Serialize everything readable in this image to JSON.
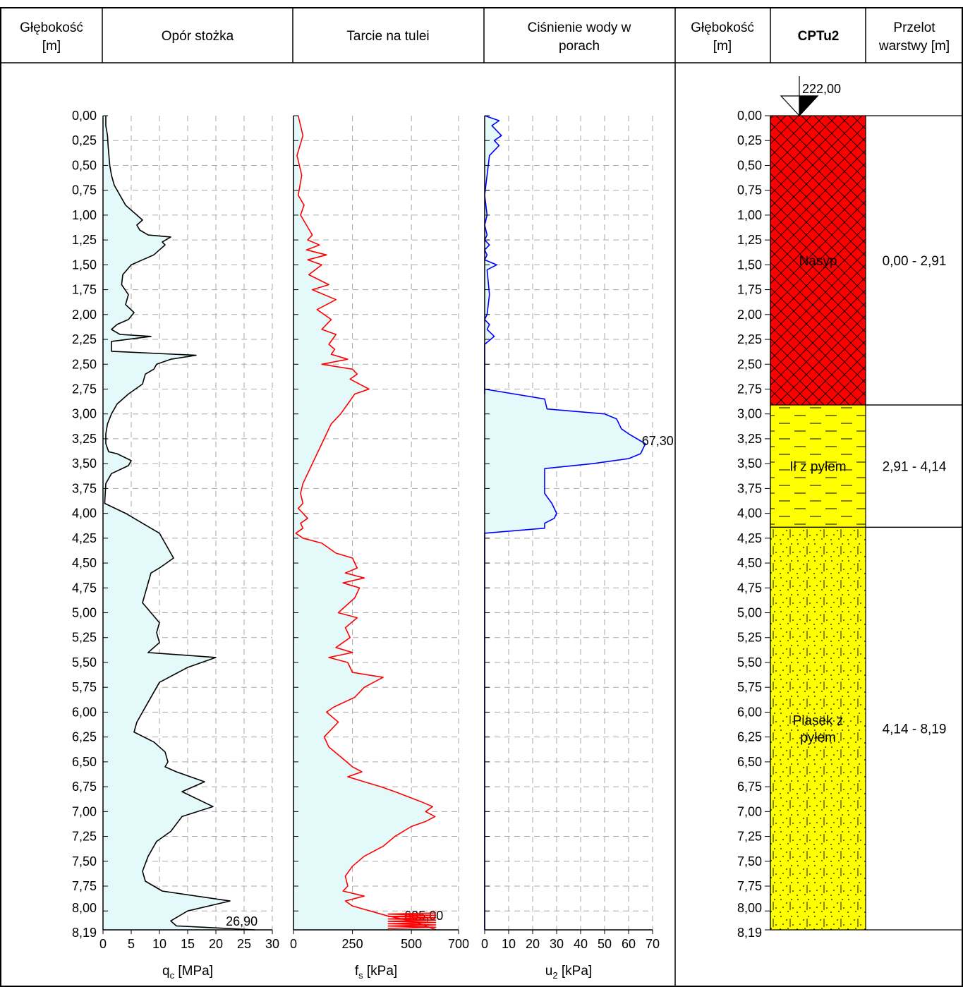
{
  "header": {
    "depth_left": [
      "Głębokość",
      "[m]"
    ],
    "cone": "Opór stożka",
    "sleeve": "Tarcie na tulei",
    "pore": [
      "Ciśnienie wody w",
      "porach"
    ],
    "depth_right": [
      "Głębokość",
      "[m]"
    ],
    "profile": "CPTu2",
    "layer_range": [
      "Przelot",
      "warstwy [m]"
    ]
  },
  "depth_ticks": [
    "0,00",
    "0,25",
    "0,50",
    "0,75",
    "1,00",
    "1,25",
    "1,50",
    "1,75",
    "2,00",
    "2,25",
    "2,50",
    "2,75",
    "3,00",
    "3,25",
    "3,50",
    "3,75",
    "4,00",
    "4,25",
    "4,50",
    "4,75",
    "5,00",
    "5,25",
    "5,50",
    "5,75",
    "6,00",
    "6,25",
    "6,50",
    "6,75",
    "7,00",
    "7,25",
    "7,50",
    "7,75",
    "8,00",
    "8,19"
  ],
  "elevation_label": "222,00",
  "colors": {
    "qc": "#000000",
    "fs": "#ff0000",
    "u2": "#0000ff",
    "fill": "#e4fafa",
    "grid": "#aaaaaa",
    "fill_layer": "#ffff00",
    "fill_red": "#ff0000"
  },
  "chart_data": [
    {
      "type": "line",
      "name": "qc",
      "xlabel_main": "q",
      "xlabel_sub": "c",
      "xlabel_unit": " [MPa]",
      "xlim": [
        0,
        30
      ],
      "ylim": [
        0,
        8.19
      ],
      "xticks": [
        0,
        5,
        10,
        15,
        20,
        25,
        30
      ],
      "xtick_labels": [
        "0",
        "5",
        "10",
        "15",
        "20",
        "25",
        "30"
      ],
      "max_label": "26,90",
      "x": [
        0.5,
        0.5,
        0.8,
        0.9,
        1.2,
        1.5,
        2.0,
        3.0,
        4.0,
        6.0,
        7.0,
        6.0,
        6.5,
        8.0,
        12.0,
        10.5,
        11.0,
        10.0,
        9.0,
        7.0,
        5.0,
        3.5,
        3.3,
        4.5,
        4.0,
        5.5,
        4.5,
        2.5,
        1.5,
        3.0,
        8.5,
        1.5,
        1.5,
        16.5,
        12.0,
        9.5,
        9.0,
        7.5,
        7.0,
        4.5,
        2.5,
        1.5,
        0.8,
        0.5,
        0.5,
        1.0,
        2.5,
        5.0,
        4.5,
        1.5,
        0.5,
        0.3,
        4.0,
        10.0,
        11.0,
        12.5,
        10.0,
        8.5,
        8.0,
        7.5,
        7.0,
        8.5,
        10.0,
        9.5,
        10.0,
        8.0,
        20.0,
        15.0,
        10.0,
        9.0,
        8.0,
        7.0,
        6.0,
        5.5,
        9.0,
        11.0,
        11.5,
        11.0,
        13.0,
        18.0,
        14.0,
        19.5,
        14.0,
        12.0,
        9.5,
        8.0,
        7.0,
        7.5,
        9.0,
        10.5,
        22.5,
        15.0,
        12.0,
        13.0,
        26.9
      ],
      "y": [
        0.0,
        0.1,
        0.2,
        0.3,
        0.5,
        0.6,
        0.7,
        0.8,
        0.9,
        1.0,
        1.05,
        1.1,
        1.15,
        1.2,
        1.22,
        1.27,
        1.3,
        1.35,
        1.4,
        1.45,
        1.5,
        1.6,
        1.7,
        1.8,
        1.9,
        1.98,
        2.05,
        2.1,
        2.15,
        2.2,
        2.22,
        2.27,
        2.37,
        2.41,
        2.45,
        2.5,
        2.55,
        2.6,
        2.7,
        2.8,
        2.9,
        3.0,
        3.1,
        3.2,
        3.3,
        3.38,
        3.4,
        3.47,
        3.52,
        3.6,
        3.7,
        3.9,
        4.0,
        4.2,
        4.3,
        4.45,
        4.55,
        4.6,
        4.7,
        4.8,
        4.9,
        5.0,
        5.1,
        5.2,
        5.3,
        5.4,
        5.45,
        5.55,
        5.7,
        5.8,
        5.9,
        6.0,
        6.1,
        6.2,
        6.3,
        6.4,
        6.5,
        6.55,
        6.6,
        6.7,
        6.8,
        6.95,
        7.05,
        7.2,
        7.3,
        7.45,
        7.6,
        7.7,
        7.75,
        7.8,
        7.9,
        8.0,
        8.1,
        8.15,
        8.19
      ]
    },
    {
      "type": "line",
      "name": "fs",
      "xlabel_main": "f",
      "xlabel_sub": "s",
      "xlabel_unit": " [kPa]",
      "xlim": [
        0,
        700
      ],
      "ylim": [
        0,
        8.19
      ],
      "xticks": [
        0,
        250,
        500,
        700
      ],
      "xtick_labels": [
        "0",
        "250",
        "500",
        "700"
      ],
      "max_label": "605,00",
      "x": [
        20,
        40,
        15,
        35,
        20,
        45,
        30,
        55,
        80,
        60,
        110,
        55,
        140,
        60,
        120,
        65,
        150,
        80,
        180,
        100,
        160,
        120,
        180,
        150,
        175,
        160,
        230,
        120,
        250,
        270,
        240,
        280,
        320,
        260,
        230,
        200,
        160,
        140,
        120,
        100,
        80,
        60,
        40,
        30,
        40,
        20,
        40,
        60,
        30,
        40,
        10,
        40,
        120,
        180,
        250,
        270,
        220,
        300,
        210,
        280,
        260,
        190,
        270,
        220,
        240,
        180,
        250,
        150,
        230,
        250,
        380,
        300,
        260,
        170,
        140,
        190,
        130,
        150,
        200,
        250,
        290,
        230,
        300,
        370,
        430,
        540,
        590,
        560,
        600,
        560,
        500,
        430,
        380,
        300,
        250,
        220,
        230,
        210,
        300,
        220,
        250,
        400,
        500,
        605
      ],
      "y": [
        0.0,
        0.2,
        0.4,
        0.6,
        0.8,
        0.9,
        1.0,
        1.1,
        1.2,
        1.25,
        1.3,
        1.35,
        1.4,
        1.45,
        1.5,
        1.6,
        1.7,
        1.75,
        1.85,
        1.95,
        2.05,
        2.15,
        2.2,
        2.3,
        2.35,
        2.4,
        2.45,
        2.5,
        2.55,
        2.6,
        2.65,
        2.7,
        2.75,
        2.8,
        2.9,
        3.0,
        3.1,
        3.2,
        3.3,
        3.4,
        3.5,
        3.6,
        3.7,
        3.8,
        3.9,
        3.95,
        4.0,
        4.05,
        4.1,
        4.15,
        4.2,
        4.25,
        4.3,
        4.4,
        4.45,
        4.55,
        4.6,
        4.65,
        4.7,
        4.75,
        4.85,
        5.0,
        5.05,
        5.15,
        5.25,
        5.35,
        5.4,
        5.45,
        5.5,
        5.6,
        5.65,
        5.75,
        5.85,
        5.95,
        6.0,
        6.1,
        6.25,
        6.35,
        6.45,
        6.55,
        6.6,
        6.65,
        6.7,
        6.75,
        6.8,
        6.9,
        6.95,
        7.0,
        7.05,
        7.1,
        7.15,
        7.25,
        7.35,
        7.45,
        7.55,
        7.65,
        7.75,
        7.8,
        7.85,
        7.9,
        7.95,
        8.05,
        8.1,
        8.19
      ]
    },
    {
      "type": "line",
      "name": "u2",
      "xlabel_main": "u",
      "xlabel_sub": "2",
      "xlabel_unit": " [kPa]",
      "xlim": [
        0,
        70
      ],
      "ylim": [
        0,
        8.19
      ],
      "xticks": [
        0,
        10,
        20,
        30,
        40,
        50,
        60,
        70
      ],
      "xtick_labels": [
        "0",
        "10",
        "20",
        "30",
        "40",
        "50",
        "60",
        "70"
      ],
      "max_label": "67,30",
      "x": [
        0,
        6,
        3,
        7,
        4,
        6,
        2,
        0,
        1,
        0,
        1,
        0,
        2,
        0,
        1,
        0,
        5,
        1,
        2,
        1,
        0,
        2,
        1,
        4,
        0,
        0,
        0,
        25,
        26,
        50,
        55,
        57,
        60,
        67,
        65,
        60,
        45,
        25,
        25,
        25,
        28,
        30,
        29,
        25,
        25,
        0,
        0
      ],
      "y": [
        0.0,
        0.05,
        0.1,
        0.2,
        0.25,
        0.3,
        0.4,
        0.8,
        1.0,
        1.1,
        1.2,
        1.25,
        1.3,
        1.35,
        1.4,
        1.45,
        1.5,
        1.55,
        1.8,
        2.0,
        2.05,
        2.1,
        2.15,
        2.22,
        2.3,
        2.8,
        2.75,
        2.85,
        2.95,
        3.0,
        3.05,
        3.15,
        3.2,
        3.3,
        3.4,
        3.45,
        3.5,
        3.55,
        3.7,
        3.8,
        3.9,
        4.0,
        4.05,
        4.1,
        4.15,
        4.2,
        8.19
      ]
    }
  ],
  "layers": [
    {
      "name": [
        "Nasyp"
      ],
      "top": 0.0,
      "bottom": 2.91,
      "range": "0,00 - 2,91",
      "pattern": "hatch"
    },
    {
      "name": [
        "Ił z pyłem"
      ],
      "top": 2.91,
      "bottom": 4.14,
      "range": "2,91 - 4,14",
      "pattern": "dash"
    },
    {
      "name": [
        "Piasek z",
        "pyłem"
      ],
      "top": 4.14,
      "bottom": 8.19,
      "range": "4,14 - 8,19",
      "pattern": "sand"
    }
  ]
}
